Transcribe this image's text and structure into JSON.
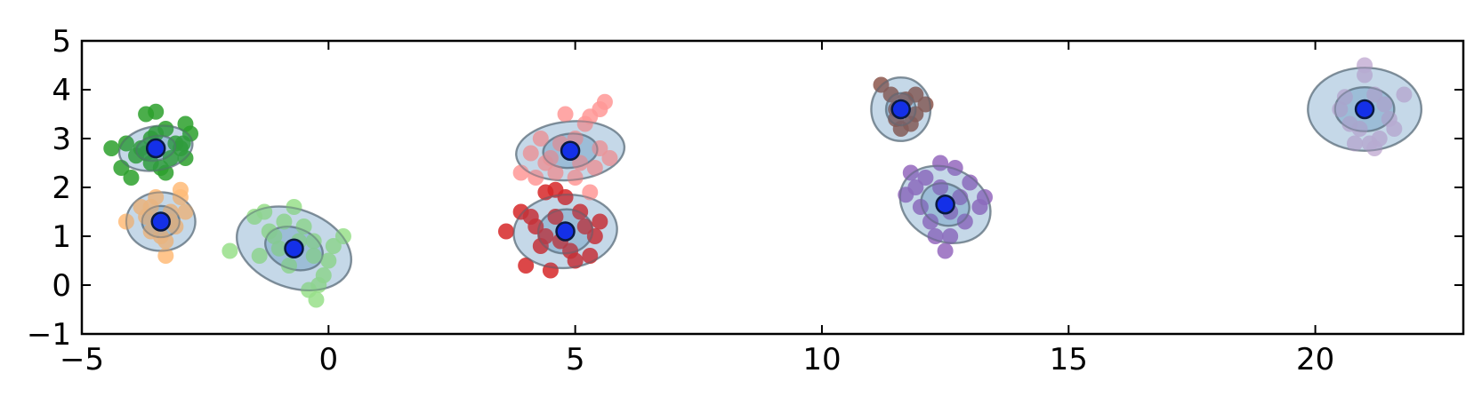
{
  "chart_data": {
    "type": "scatter",
    "title": "",
    "xlabel": "",
    "ylabel": "",
    "xlim": [
      -5,
      23
    ],
    "ylim": [
      -1,
      5
    ],
    "x_ticks": [
      -5,
      0,
      5,
      10,
      15,
      20
    ],
    "y_ticks": [
      -1,
      0,
      1,
      2,
      3,
      4,
      5
    ],
    "x_tick_labels": [
      "−5",
      "0",
      "5",
      "10",
      "15",
      "20"
    ],
    "y_tick_labels": [
      "−1",
      "0",
      "1",
      "2",
      "3",
      "4",
      "5"
    ],
    "grid": false,
    "legend": "none",
    "center_color": "#1430e8",
    "ellipse_color": "#4682b4",
    "clusters": [
      {
        "color": "#2ca02c",
        "center": [
          -3.5,
          2.8
        ],
        "ellipses": [
          {
            "rx": 0.75,
            "ry": 0.45,
            "angle": 10
          },
          {
            "rx": 0.4,
            "ry": 0.25,
            "angle": 10
          }
        ],
        "points": [
          [
            -4.4,
            2.8
          ],
          [
            -4.2,
            2.4
          ],
          [
            -4.0,
            2.2
          ],
          [
            -3.8,
            2.8
          ],
          [
            -3.7,
            3.5
          ],
          [
            -3.5,
            3.55
          ],
          [
            -3.6,
            2.5
          ],
          [
            -3.3,
            2.3
          ],
          [
            -3.1,
            2.9
          ],
          [
            -2.9,
            3.3
          ],
          [
            -2.8,
            3.1
          ],
          [
            -2.9,
            2.6
          ],
          [
            -3.2,
            2.6
          ],
          [
            -3.6,
            3.0
          ],
          [
            -3.9,
            2.65
          ],
          [
            -3.4,
            2.4
          ],
          [
            -3.0,
            2.8
          ],
          [
            -4.1,
            2.9
          ],
          [
            -3.5,
            3.1
          ],
          [
            -3.3,
            3.2
          ],
          [
            -3.7,
            2.7
          ],
          [
            -2.95,
            2.9
          ]
        ]
      },
      {
        "color": "#ffbb78",
        "center": [
          -3.4,
          1.3
        ],
        "ellipses": [
          {
            "rx": 0.7,
            "ry": 0.6,
            "angle": 0
          },
          {
            "rx": 0.38,
            "ry": 0.32,
            "angle": 0
          }
        ],
        "points": [
          [
            -4.1,
            1.3
          ],
          [
            -3.8,
            1.6
          ],
          [
            -3.6,
            1.1
          ],
          [
            -3.3,
            0.6
          ],
          [
            -3.3,
            0.9
          ],
          [
            -3.2,
            1.5
          ],
          [
            -3.0,
            1.8
          ],
          [
            -2.9,
            1.5
          ],
          [
            -3.5,
            1.8
          ],
          [
            -3.1,
            1.2
          ],
          [
            -3.7,
            1.4
          ],
          [
            -3.0,
            1.95
          ],
          [
            -3.4,
            1.0
          ],
          [
            -3.2,
            1.3
          ],
          [
            -3.6,
            1.6
          ]
        ]
      },
      {
        "color": "#98df8a",
        "center": [
          -0.7,
          0.75
        ],
        "ellipses": [
          {
            "rx": 1.2,
            "ry": 0.8,
            "angle": -20
          },
          {
            "rx": 0.6,
            "ry": 0.42,
            "angle": -20
          }
        ],
        "points": [
          [
            -2.0,
            0.7
          ],
          [
            -1.5,
            1.4
          ],
          [
            -1.3,
            1.5
          ],
          [
            -1.1,
            1.0
          ],
          [
            -0.9,
            1.3
          ],
          [
            -0.7,
            1.6
          ],
          [
            -0.5,
            1.2
          ],
          [
            -0.3,
            0.9
          ],
          [
            -0.2,
            0.0
          ],
          [
            -0.1,
            0.2
          ],
          [
            0.1,
            0.8
          ],
          [
            0.3,
            1.0
          ],
          [
            -0.4,
            -0.1
          ],
          [
            -0.25,
            -0.3
          ],
          [
            -1.4,
            0.6
          ],
          [
            -0.8,
            0.4
          ],
          [
            -0.6,
            0.9
          ],
          [
            -1.0,
            0.75
          ],
          [
            0.0,
            0.5
          ],
          [
            -0.3,
            0.6
          ],
          [
            -1.2,
            1.1
          ]
        ]
      },
      {
        "color": "#ff9896",
        "center": [
          4.9,
          2.75
        ],
        "ellipses": [
          {
            "rx": 1.1,
            "ry": 0.6,
            "angle": 5
          },
          {
            "rx": 0.55,
            "ry": 0.35,
            "angle": 5
          }
        ],
        "points": [
          [
            3.9,
            2.3
          ],
          [
            4.1,
            2.7
          ],
          [
            4.3,
            3.0
          ],
          [
            4.5,
            2.6
          ],
          [
            4.8,
            3.5
          ],
          [
            5.2,
            3.3
          ],
          [
            5.3,
            3.45
          ],
          [
            5.5,
            3.6
          ],
          [
            5.6,
            3.75
          ],
          [
            5.7,
            2.6
          ],
          [
            5.4,
            2.4
          ],
          [
            4.6,
            2.3
          ],
          [
            5.0,
            2.2
          ],
          [
            5.3,
            1.9
          ],
          [
            4.2,
            2.2
          ],
          [
            5.0,
            3.0
          ],
          [
            4.7,
            2.9
          ],
          [
            5.5,
            2.8
          ],
          [
            4.4,
            2.5
          ],
          [
            5.1,
            2.5
          ]
        ]
      },
      {
        "color": "#d62728",
        "center": [
          4.8,
          1.1
        ],
        "ellipses": [
          {
            "rx": 1.05,
            "ry": 0.75,
            "angle": 5
          },
          {
            "rx": 0.55,
            "ry": 0.45,
            "angle": 5
          }
        ],
        "points": [
          [
            3.6,
            1.1
          ],
          [
            3.9,
            1.5
          ],
          [
            4.0,
            0.4
          ],
          [
            4.3,
            0.8
          ],
          [
            4.4,
            1.9
          ],
          [
            4.6,
            1.95
          ],
          [
            4.8,
            1.8
          ],
          [
            4.5,
            0.3
          ],
          [
            5.0,
            0.5
          ],
          [
            5.3,
            0.6
          ],
          [
            5.4,
            1.0
          ],
          [
            5.5,
            1.3
          ],
          [
            4.2,
            1.2
          ],
          [
            4.7,
            0.9
          ],
          [
            5.1,
            1.5
          ],
          [
            4.9,
            0.7
          ],
          [
            4.4,
            1.0
          ],
          [
            5.2,
            1.2
          ],
          [
            4.6,
            1.4
          ],
          [
            4.1,
            1.4
          ]
        ]
      },
      {
        "color": "#8c564b",
        "center": [
          11.6,
          3.6
        ],
        "ellipses": [
          {
            "rx": 0.6,
            "ry": 0.65,
            "angle": 0
          },
          {
            "rx": 0.3,
            "ry": 0.33,
            "angle": 0
          }
        ],
        "points": [
          [
            11.2,
            4.1
          ],
          [
            11.4,
            3.9
          ],
          [
            11.5,
            3.4
          ],
          [
            11.6,
            3.2
          ],
          [
            11.8,
            3.3
          ],
          [
            11.9,
            3.9
          ],
          [
            12.1,
            3.7
          ],
          [
            11.7,
            3.8
          ],
          [
            11.5,
            3.6
          ],
          [
            11.9,
            3.5
          ]
        ]
      },
      {
        "color": "#9467bd",
        "center": [
          12.5,
          1.65
        ],
        "ellipses": [
          {
            "rx": 0.95,
            "ry": 0.75,
            "angle": -25
          },
          {
            "rx": 0.5,
            "ry": 0.42,
            "angle": -25
          }
        ],
        "points": [
          [
            11.7,
            1.85
          ],
          [
            11.8,
            2.3
          ],
          [
            12.1,
            2.2
          ],
          [
            12.4,
            2.5
          ],
          [
            12.7,
            2.4
          ],
          [
            13.0,
            2.1
          ],
          [
            13.2,
            1.6
          ],
          [
            13.3,
            1.8
          ],
          [
            12.9,
            1.3
          ],
          [
            12.6,
            1.0
          ],
          [
            12.3,
            1.0
          ],
          [
            12.5,
            0.7
          ],
          [
            12.2,
            1.3
          ],
          [
            12.0,
            1.6
          ],
          [
            12.8,
            1.8
          ],
          [
            12.4,
            2.0
          ],
          [
            12.6,
            1.5
          ],
          [
            11.9,
            2.0
          ]
        ]
      },
      {
        "color": "#c5b0d5",
        "center": [
          21.0,
          3.6
        ],
        "ellipses": [
          {
            "rx": 1.15,
            "ry": 0.85,
            "angle": 0
          },
          {
            "rx": 0.6,
            "ry": 0.45,
            "angle": 0
          }
        ],
        "points": [
          [
            20.7,
            3.3
          ],
          [
            20.6,
            3.85
          ],
          [
            21.0,
            4.5
          ],
          [
            21.0,
            4.3
          ],
          [
            21.2,
            3.9
          ],
          [
            21.5,
            3.4
          ],
          [
            21.6,
            3.2
          ],
          [
            21.8,
            3.9
          ],
          [
            21.3,
            3.0
          ],
          [
            21.1,
            2.9
          ],
          [
            20.9,
            3.2
          ],
          [
            20.8,
            2.9
          ],
          [
            21.4,
            3.7
          ],
          [
            20.5,
            3.6
          ],
          [
            21.2,
            2.8
          ]
        ]
      }
    ]
  }
}
